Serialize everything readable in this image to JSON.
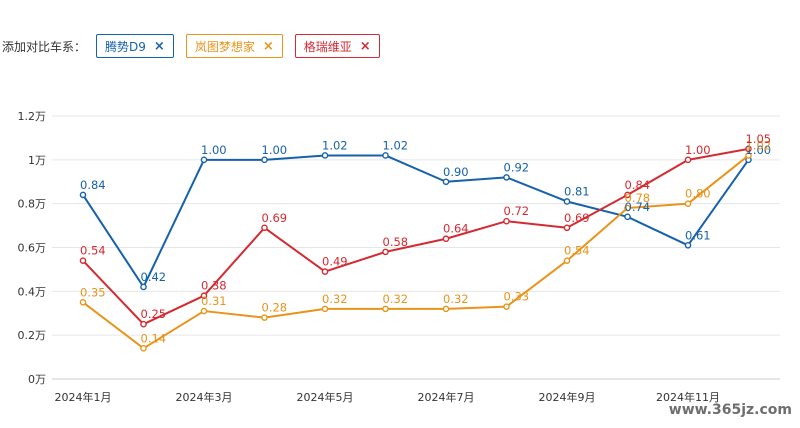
{
  "compare": {
    "label": "添加对比车系：",
    "chips": [
      {
        "name": "腾势D9",
        "color": "#1561ab",
        "close": "×"
      },
      {
        "name": "岚图梦想家",
        "color": "#e8941a",
        "close": "×"
      },
      {
        "name": "格瑞维亚",
        "color": "#d42a32",
        "close": "×"
      }
    ]
  },
  "watermark": "www.365jz.com",
  "chart_data": {
    "type": "line",
    "x": [
      "2024-01",
      "2024-02",
      "2024-03",
      "2024-04",
      "2024-05",
      "2024-06",
      "2024-07",
      "2024-08",
      "2024-09",
      "2024-10",
      "2024-11",
      "2024-12"
    ],
    "x_tick_labels": [
      "2024年1月",
      "",
      "2024年3月",
      "",
      "2024年5月",
      "",
      "2024年7月",
      "",
      "2024年9月",
      "",
      "2024年11月",
      ""
    ],
    "y_ticks": [
      0,
      0.2,
      0.4,
      0.6,
      0.8,
      1.0,
      1.2
    ],
    "y_tick_labels": [
      "0万",
      "0.2万",
      "0.4万",
      "0.6万",
      "0.8万",
      "1万",
      "1.2万"
    ],
    "ylim": [
      0,
      1.2
    ],
    "grid": true,
    "series": [
      {
        "name": "腾势D9",
        "color": "#1561ab",
        "values": [
          0.84,
          0.42,
          1.0,
          1.0,
          1.02,
          1.02,
          0.9,
          0.92,
          0.81,
          0.74,
          0.61,
          1.0
        ],
        "labels": [
          "0.84",
          "0.42",
          "1.00",
          "1.00",
          "1.02",
          "1.02",
          "0.90",
          "0.92",
          "0.81",
          "0.74",
          "0.61",
          "1.00"
        ]
      },
      {
        "name": "岚图梦想家",
        "color": "#e8941a",
        "values": [
          0.35,
          0.14,
          0.31,
          0.28,
          0.32,
          0.32,
          0.32,
          0.33,
          0.54,
          0.78,
          0.8,
          1.02
        ],
        "labels": [
          "0.35",
          "0.14",
          "0.31",
          "0.28",
          "0.32",
          "0.32",
          "0.32",
          "0.33",
          "0.54",
          "0.78",
          "0.80",
          "1.02"
        ]
      },
      {
        "name": "格瑞维亚",
        "color": "#d42a32",
        "values": [
          0.54,
          0.25,
          0.38,
          0.69,
          0.49,
          0.58,
          0.64,
          0.72,
          0.69,
          0.84,
          1.0,
          1.05
        ],
        "labels": [
          "0.54",
          "0.25",
          "0.38",
          "0.69",
          "0.49",
          "0.58",
          "0.64",
          "0.72",
          "0.69",
          "0.84",
          "1.00",
          "1.05"
        ]
      }
    ]
  }
}
